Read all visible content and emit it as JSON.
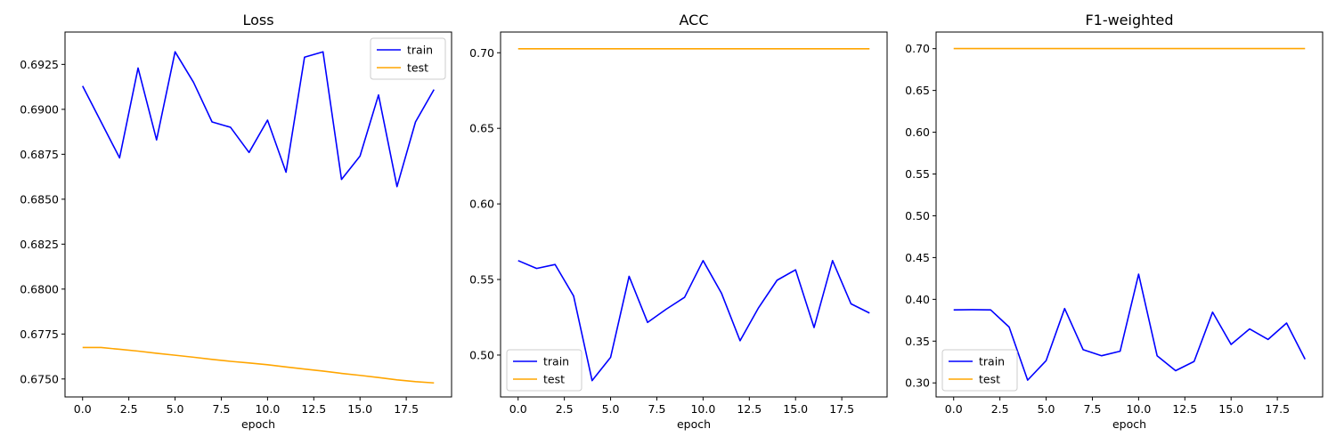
{
  "chart_data": [
    {
      "type": "line",
      "title": "Loss",
      "xlabel": "epoch",
      "ylabel": "",
      "xlim": [
        -0.95,
        19.95
      ],
      "ylim": [
        0.674,
        0.6943
      ],
      "xticks": [
        0.0,
        2.5,
        5.0,
        7.5,
        10.0,
        12.5,
        15.0,
        17.5
      ],
      "xtick_labels": [
        "0.0",
        "2.5",
        "5.0",
        "7.5",
        "10.0",
        "12.5",
        "15.0",
        "17.5"
      ],
      "yticks": [
        0.675,
        0.6775,
        0.68,
        0.6825,
        0.685,
        0.6875,
        0.69,
        0.6925
      ],
      "ytick_labels": [
        "0.6750",
        "0.6775",
        "0.6800",
        "0.6825",
        "0.6850",
        "0.6875",
        "0.6900",
        "0.6925"
      ],
      "legend": "top-right",
      "x": [
        0,
        1,
        2,
        3,
        4,
        5,
        6,
        7,
        8,
        9,
        10,
        11,
        12,
        13,
        14,
        15,
        16,
        17,
        18,
        19
      ],
      "series": [
        {
          "name": "train",
          "color": "#0000ff",
          "values": [
            0.6913,
            0.6893,
            0.6873,
            0.6923,
            0.6883,
            0.6932,
            0.6915,
            0.6893,
            0.689,
            0.6876,
            0.6894,
            0.6865,
            0.6929,
            0.6932,
            0.6861,
            0.6874,
            0.6908,
            0.6857,
            0.6893,
            0.6911
          ]
        },
        {
          "name": "test",
          "color": "#ffa500",
          "values": [
            0.67675,
            0.67675,
            0.67665,
            0.67655,
            0.67643,
            0.67632,
            0.67621,
            0.67609,
            0.67598,
            0.67589,
            0.67579,
            0.67567,
            0.67555,
            0.67544,
            0.67531,
            0.6752,
            0.67508,
            0.67495,
            0.67485,
            0.67478
          ]
        }
      ]
    },
    {
      "type": "line",
      "title": "ACC",
      "xlabel": "epoch",
      "ylabel": "",
      "xlim": [
        -0.95,
        19.95
      ],
      "ylim": [
        0.4723,
        0.7137
      ],
      "xticks": [
        0.0,
        2.5,
        5.0,
        7.5,
        10.0,
        12.5,
        15.0,
        17.5
      ],
      "xtick_labels": [
        "0.0",
        "2.5",
        "5.0",
        "7.5",
        "10.0",
        "12.5",
        "15.0",
        "17.5"
      ],
      "yticks": [
        0.5,
        0.55,
        0.6,
        0.65,
        0.7
      ],
      "ytick_labels": [
        "0.50",
        "0.55",
        "0.60",
        "0.65",
        "0.70"
      ],
      "legend": "bottom-left",
      "x": [
        0,
        1,
        2,
        3,
        4,
        5,
        6,
        7,
        8,
        9,
        10,
        11,
        12,
        13,
        14,
        15,
        16,
        17,
        18,
        19
      ],
      "series": [
        {
          "name": "train",
          "color": "#0000ff",
          "values": [
            0.5625,
            0.5573,
            0.5599,
            0.5391,
            0.4831,
            0.4985,
            0.5521,
            0.5216,
            0.5303,
            0.5382,
            0.5625,
            0.5408,
            0.5095,
            0.5313,
            0.5495,
            0.5564,
            0.5182,
            0.5625,
            0.5339,
            0.5278
          ]
        },
        {
          "name": "test",
          "color": "#ffa500",
          "values": [
            0.7026,
            0.7026,
            0.7026,
            0.7026,
            0.7026,
            0.7026,
            0.7026,
            0.7026,
            0.7026,
            0.7026,
            0.7026,
            0.7026,
            0.7026,
            0.7026,
            0.7026,
            0.7026,
            0.7026,
            0.7026,
            0.7026,
            0.7026
          ]
        }
      ]
    },
    {
      "type": "line",
      "title": "F1-weighted",
      "xlabel": "epoch",
      "ylabel": "",
      "xlim": [
        -0.95,
        19.95
      ],
      "ylim": [
        0.2832,
        0.7199
      ],
      "xticks": [
        0.0,
        2.5,
        5.0,
        7.5,
        10.0,
        12.5,
        15.0,
        17.5
      ],
      "xtick_labels": [
        "0.0",
        "2.5",
        "5.0",
        "7.5",
        "10.0",
        "12.5",
        "15.0",
        "17.5"
      ],
      "yticks": [
        0.3,
        0.35,
        0.4,
        0.45,
        0.5,
        0.55,
        0.6,
        0.65,
        0.7
      ],
      "ytick_labels": [
        "0.30",
        "0.35",
        "0.40",
        "0.45",
        "0.50",
        "0.55",
        "0.60",
        "0.65",
        "0.70"
      ],
      "legend": "bottom-left",
      "x": [
        0,
        1,
        2,
        3,
        4,
        5,
        6,
        7,
        8,
        9,
        10,
        11,
        12,
        13,
        14,
        15,
        16,
        17,
        18,
        19
      ],
      "series": [
        {
          "name": "train",
          "color": "#0000ff",
          "values": [
            0.3874,
            0.3876,
            0.3874,
            0.3668,
            0.3033,
            0.3267,
            0.389,
            0.3398,
            0.3325,
            0.3379,
            0.4301,
            0.3325,
            0.3146,
            0.3257,
            0.3847,
            0.346,
            0.3646,
            0.352,
            0.3716,
            0.3283
          ]
        },
        {
          "name": "test",
          "color": "#ffa500",
          "values": [
            0.7001,
            0.7001,
            0.7001,
            0.7001,
            0.7001,
            0.7001,
            0.7001,
            0.7001,
            0.7001,
            0.7001,
            0.7001,
            0.7001,
            0.7001,
            0.7001,
            0.7001,
            0.7001,
            0.7001,
            0.7001,
            0.7001,
            0.7001
          ]
        }
      ]
    }
  ]
}
